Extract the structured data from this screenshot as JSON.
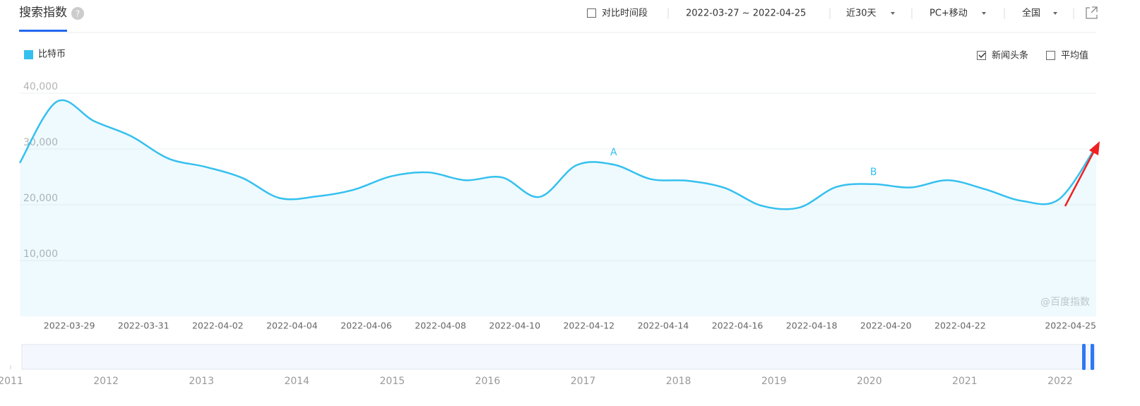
{
  "header": {
    "tab": "搜索指数",
    "help": "?",
    "compare": "对比时间段",
    "date_range": "2022-03-27 ~ 2022-04-25",
    "period": "近30天",
    "device": "PC+移动",
    "region": "全国"
  },
  "options": [
    {
      "label": "新闻头条",
      "checked": true
    },
    {
      "label": "平均值",
      "checked": false
    }
  ],
  "watermark": "@百度指数",
  "chart_data": {
    "type": "line",
    "categories": [
      null,
      null,
      "2022-03-29",
      null,
      "2022-03-31",
      null,
      "2022-04-02",
      null,
      "2022-04-04",
      null,
      "2022-04-06",
      null,
      "2022-04-08",
      null,
      "2022-04-10",
      null,
      "2022-04-12",
      null,
      "2022-04-14",
      null,
      "2022-04-16",
      null,
      "2022-04-18",
      null,
      "2022-04-20",
      null,
      "2022-04-22",
      null,
      null,
      "2022-04-25"
    ],
    "series": [
      {
        "name": "比特币",
        "color": "#35c0ef",
        "values": [
          27500,
          38500,
          35000,
          32300,
          28300,
          26800,
          24800,
          21200,
          21500,
          22700,
          25100,
          25800,
          24400,
          24900,
          21400,
          27100,
          27200,
          24600,
          24300,
          23000,
          19800,
          19500,
          23200,
          23700,
          23100,
          24400,
          22800,
          20700,
          21000,
          30500
        ]
      }
    ],
    "annotations": [
      {
        "text": "A",
        "index": 16
      },
      {
        "text": "B",
        "index": 23
      }
    ],
    "ylim": [
      0,
      40000
    ],
    "yticks": [
      {
        "value": 10000,
        "label": "10,000"
      },
      {
        "value": 20000,
        "label": "20,000"
      },
      {
        "value": 30000,
        "label": "30,000"
      },
      {
        "value": 40000,
        "label": "40,000"
      }
    ],
    "grid": true,
    "overview": {
      "xlim": [
        2011,
        2022.4
      ],
      "xticks": [
        2011,
        2012,
        2013,
        2014,
        2015,
        2016,
        2017,
        2018,
        2019,
        2020,
        2021,
        2022
      ]
    }
  }
}
